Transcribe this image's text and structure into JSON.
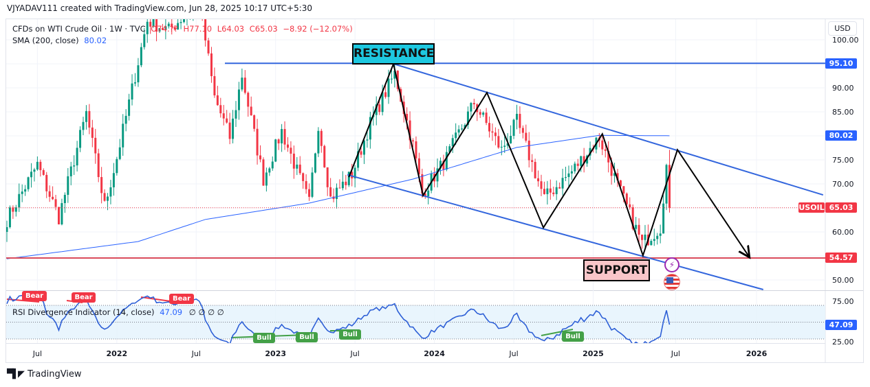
{
  "header": {
    "created_by": "VJYADAV111 created with TradingView.com, Jun 28, 2025 10:17 UTC+5:30",
    "symbol_line": "CFDs on WTI Crude Oil · 1W · TVC",
    "ohlc": {
      "o": "O74.??",
      "h": "H77.10",
      "l": "L64.03",
      "c": "C65.03",
      "change": "−8.92 (−12.07%)"
    },
    "sma_label": "SMA (200, close)",
    "sma_value": "80.02",
    "currency_button": "USD"
  },
  "colors": {
    "up": "#089981",
    "down": "#f23645",
    "line": "#2962ff",
    "drawing_blue": "#3366dd",
    "support": "#d94a5a",
    "rsi": "#2d5fd6",
    "bull": "#43a047"
  },
  "price_axis": {
    "ticks": [
      "100.00",
      "90.00",
      "85.00",
      "75.00",
      "70.00",
      "60.00",
      "50.00"
    ],
    "tick_values": [
      100,
      90,
      85,
      75,
      70,
      60,
      50
    ],
    "resistance_tag": "95.10",
    "sma_tag": "80.02",
    "symbol_tag": "USOIL",
    "last_price_tag": "65.03",
    "support_tag": "54.57"
  },
  "rsi_axis": {
    "ticks": [
      "75.00",
      "25.00"
    ],
    "value_tag": "47.09"
  },
  "rsi_legend": {
    "name": "RSI Divergence Indicator (14, close)",
    "value": "47.09",
    "extras": "∅  ∅  ∅  ∅"
  },
  "divergence_labels": {
    "bear": "Bear",
    "bull": "Bull"
  },
  "annotations": {
    "resistance": "RESISTANCE",
    "support": "SUPPORT"
  },
  "footer": {
    "brand": "TradingView"
  },
  "chart_data": {
    "type": "candlestick",
    "title": "CFDs on WTI Crude Oil · 1W · TVC",
    "timeframe": "1W",
    "start_week": "2021-04-19",
    "x_ticks": [
      {
        "label": "Jul",
        "week": 10,
        "bold": false
      },
      {
        "label": "2022",
        "week": 36,
        "bold": true
      },
      {
        "label": "Jul",
        "week": 62,
        "bold": false
      },
      {
        "label": "2023",
        "week": 88,
        "bold": true
      },
      {
        "label": "Jul",
        "week": 114,
        "bold": false
      },
      {
        "label": "2024",
        "week": 140,
        "bold": true
      },
      {
        "label": "Jul",
        "week": 166,
        "bold": false
      },
      {
        "label": "2025",
        "week": 192,
        "bold": true
      },
      {
        "label": "Jul",
        "week": 219,
        "bold": false
      },
      {
        "label": "2026",
        "week": 245.5,
        "bold": true
      }
    ],
    "ylim": [
      47,
      103
    ],
    "close_keypoints": [
      [
        0,
        62.6
      ],
      [
        10,
        74
      ],
      [
        17,
        63
      ],
      [
        26,
        84.7
      ],
      [
        32,
        65.4
      ],
      [
        36,
        75.4
      ],
      [
        41,
        89.7
      ],
      [
        46,
        104
      ],
      [
        53,
        102
      ],
      [
        63,
        108
      ],
      [
        68,
        88
      ],
      [
        73,
        79.7
      ],
      [
        77,
        92.6
      ],
      [
        84,
        71
      ],
      [
        90,
        81
      ],
      [
        99,
        66
      ],
      [
        102,
        82.6
      ],
      [
        106,
        67
      ],
      [
        113,
        72
      ],
      [
        119,
        82.6
      ],
      [
        127,
        93
      ],
      [
        133,
        78
      ],
      [
        136,
        68
      ],
      [
        144,
        75.4
      ],
      [
        153,
        86.9
      ],
      [
        162,
        77
      ],
      [
        167,
        83
      ],
      [
        176,
        67
      ],
      [
        185,
        72.6
      ],
      [
        194,
        79.7
      ],
      [
        200,
        69.7
      ],
      [
        208,
        57.6
      ],
      [
        214,
        61
      ],
      [
        216,
        73.95
      ],
      [
        217,
        65.03
      ]
    ],
    "last_candle": {
      "high": 77.1,
      "low": 64.03,
      "close": 65.03,
      "change": -8.92,
      "change_pct": -12.07
    },
    "sma200_keypoints": [
      [
        0,
        54.4
      ],
      [
        43,
        58
      ],
      [
        65,
        62.6
      ],
      [
        99,
        66
      ],
      [
        133,
        71
      ],
      [
        167,
        77.6
      ],
      [
        194,
        80.1
      ],
      [
        217,
        80.02
      ]
    ],
    "levels": {
      "resistance": 95.1,
      "support": 54.57,
      "last": 65.03,
      "sma": 80.02
    },
    "drawings": {
      "zigzag": [
        [
          112,
          71.4
        ],
        [
          126.6,
          95
        ],
        [
          136.3,
          67.6
        ],
        [
          157.2,
          89
        ],
        [
          175.7,
          60.9
        ],
        [
          195,
          80.4
        ],
        [
          208.3,
          55.1
        ],
        [
          219.6,
          77.1
        ],
        [
          243.2,
          54.7
        ]
      ],
      "upper_channel": [
        [
          126.6,
          95
        ],
        [
          267.3,
          67.7
        ]
      ],
      "lower_channel": [
        [
          111.5,
          71.9
        ],
        [
          247.7,
          48
        ]
      ],
      "resistance_line": [
        [
          71.4,
          95.1
        ],
        [
          268,
          95.1
        ]
      ]
    },
    "rsi": {
      "period": 14,
      "last": 47.09,
      "bands": [
        70,
        50,
        30
      ],
      "ylim": [
        25,
        75
      ]
    }
  }
}
